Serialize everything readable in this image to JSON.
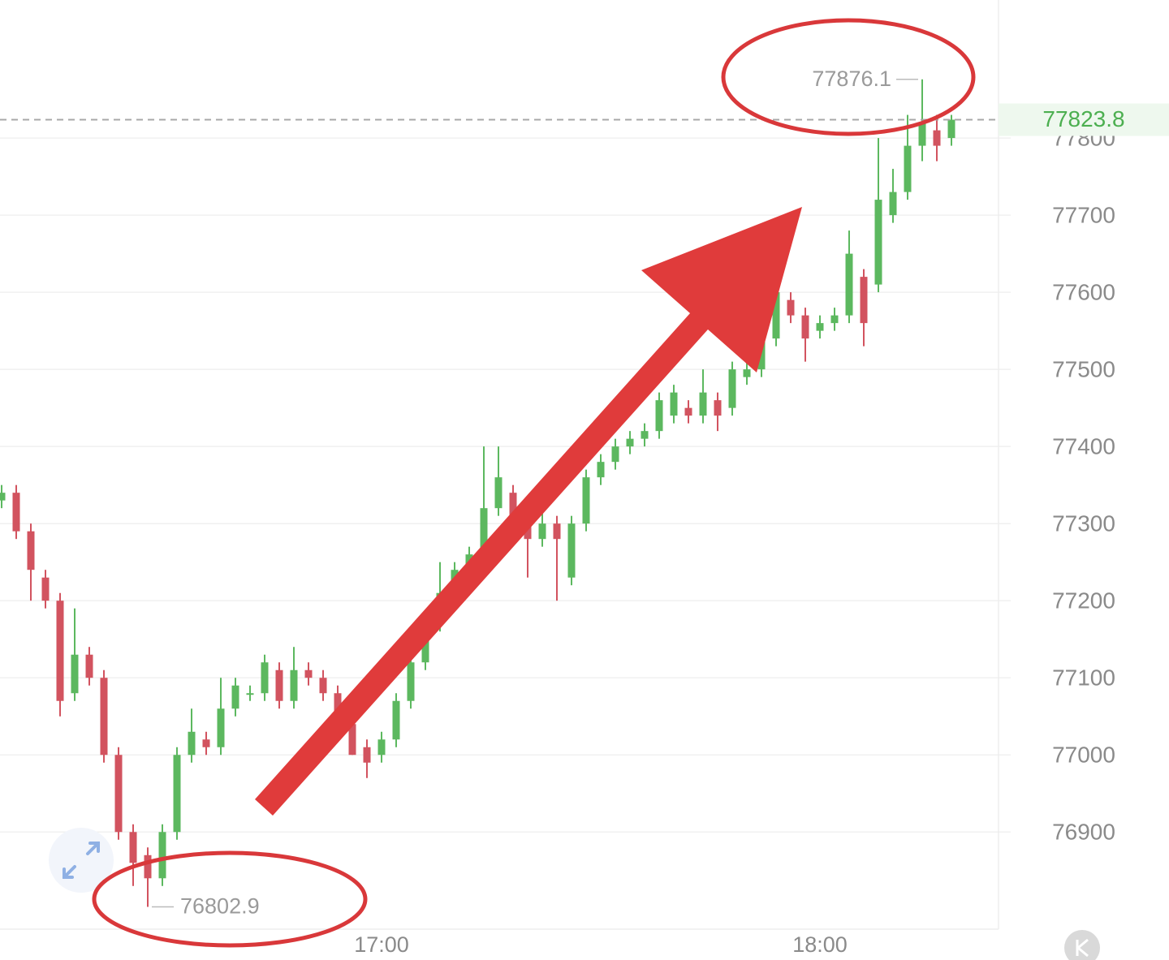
{
  "chart_data": {
    "type": "candlestick",
    "categories": [
      null,
      null,
      null,
      null,
      null,
      null,
      null,
      null,
      null,
      null,
      null,
      null,
      null,
      null,
      null,
      null,
      null,
      null,
      null,
      null,
      null,
      null,
      null,
      null,
      null,
      null,
      "17:00",
      null,
      null,
      null,
      null,
      null,
      null,
      null,
      null,
      null,
      null,
      null,
      null,
      null,
      null,
      null,
      null,
      null,
      null,
      null,
      null,
      null,
      null,
      null,
      null,
      null,
      null,
      null,
      null,
      null,
      "18:00",
      null,
      null,
      null,
      null,
      null,
      null,
      null,
      null,
      null
    ],
    "open": [
      77330,
      77340,
      77290,
      77230,
      77200,
      77080,
      77130,
      77100,
      77000,
      76900,
      76870,
      76840,
      76900,
      77000,
      77020,
      77010,
      77060,
      77080,
      77080,
      77110,
      77070,
      77110,
      77100,
      77080,
      77040,
      77010,
      77000,
      77020,
      77070,
      77120,
      77170,
      77210,
      77240,
      77260,
      77320,
      77340,
      77300,
      77280,
      77300,
      77230,
      77300,
      77360,
      77380,
      77400,
      77410,
      77420,
      77440,
      77450,
      77440,
      77460,
      77450,
      77490,
      77500,
      77540,
      77590,
      77570,
      77550,
      77560,
      77570,
      77620,
      77610,
      77700,
      77730,
      77790,
      77810,
      77800
    ],
    "high": [
      77350,
      77350,
      77300,
      77240,
      77210,
      77190,
      77140,
      77110,
      77010,
      76910,
      76880,
      76910,
      77010,
      77060,
      77030,
      77100,
      77100,
      77090,
      77130,
      77120,
      77140,
      77120,
      77110,
      77090,
      77050,
      77020,
      77030,
      77080,
      77130,
      77180,
      77250,
      77250,
      77270,
      77400,
      77400,
      77350,
      77310,
      77320,
      77310,
      77310,
      77370,
      77390,
      77410,
      77420,
      77430,
      77470,
      77480,
      77460,
      77500,
      77470,
      77510,
      77510,
      77560,
      77620,
      77600,
      77580,
      77570,
      77580,
      77680,
      77630,
      77800,
      77760,
      77830,
      77876.1,
      77830,
      77830
    ],
    "low": [
      77320,
      77280,
      77200,
      77190,
      77050,
      77070,
      77090,
      76990,
      76890,
      76830,
      76802.9,
      76830,
      76890,
      76990,
      77000,
      77000,
      77050,
      77070,
      77070,
      77060,
      77060,
      77090,
      77070,
      77030,
      77000,
      76970,
      76990,
      77010,
      77060,
      77110,
      77160,
      77200,
      77230,
      77250,
      77310,
      77290,
      77230,
      77270,
      77200,
      77220,
      77290,
      77350,
      77370,
      77390,
      77400,
      77410,
      77430,
      77430,
      77430,
      77420,
      77440,
      77480,
      77490,
      77530,
      77560,
      77510,
      77540,
      77550,
      77560,
      77530,
      77600,
      77690,
      77720,
      77770,
      77770,
      77790
    ],
    "close": [
      77340,
      77290,
      77240,
      77200,
      77070,
      77130,
      77100,
      77000,
      76900,
      76860,
      76840,
      76900,
      77000,
      77030,
      77010,
      77060,
      77090,
      77080,
      77120,
      77070,
      77110,
      77100,
      77080,
      77040,
      77000,
      76990,
      77020,
      77070,
      77120,
      77170,
      77210,
      77240,
      77260,
      77320,
      77360,
      77300,
      77280,
      77300,
      77280,
      77300,
      77360,
      77380,
      77400,
      77410,
      77420,
      77460,
      77470,
      77440,
      77470,
      77440,
      77500,
      77500,
      77540,
      77600,
      77570,
      77540,
      77560,
      77570,
      77650,
      77560,
      77720,
      77730,
      77790,
      77820,
      77790,
      77823.8
    ],
    "up_color": "#5cb85f",
    "down_color": "#d2535f",
    "ylim": [
      76774,
      77979
    ],
    "yticks": [
      76900,
      77000,
      77100,
      77200,
      77300,
      77400,
      77500,
      77600,
      77700,
      77800
    ],
    "grid": true
  }
}
